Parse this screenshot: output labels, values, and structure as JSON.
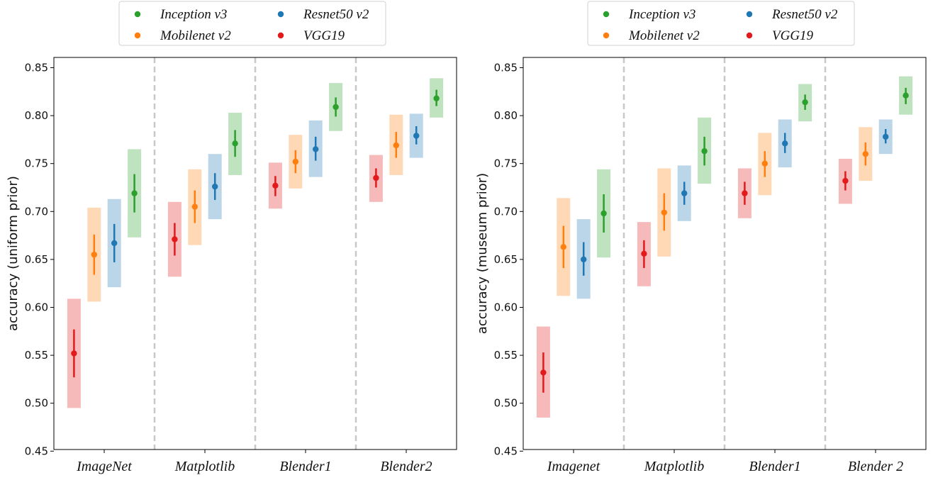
{
  "colors": {
    "Inception v3": "#2ca02c",
    "Mobilenet v2": "#ff7f0e",
    "Resnet50 v2": "#1f77b4",
    "VGG19": "#e31a1c"
  },
  "chart_data": [
    {
      "type": "scatter",
      "ylabel": "accuracy (uniform prior)",
      "ylim": [
        0.45,
        0.86
      ],
      "yticks": [
        "0.45",
        "0.50",
        "0.55",
        "0.60",
        "0.65",
        "0.70",
        "0.75",
        "0.80",
        "0.85"
      ],
      "categories": [
        "ImageNet",
        "Matplotlib",
        "Blender1",
        "Blender2"
      ],
      "legend": [
        "Inception v3",
        "Mobilenet v2",
        "Resnet50 v2",
        "VGG19"
      ],
      "legend_position": "top",
      "series": [
        {
          "name": "VGG19",
          "values": [
            0.552,
            0.671,
            0.727,
            0.735
          ],
          "err": [
            [
              0.527,
              0.577
            ],
            [
              0.654,
              0.688
            ],
            [
              0.716,
              0.737
            ],
            [
              0.725,
              0.745
            ]
          ],
          "band": [
            [
              0.495,
              0.609
            ],
            [
              0.632,
              0.71
            ],
            [
              0.703,
              0.751
            ],
            [
              0.71,
              0.759
            ]
          ]
        },
        {
          "name": "Mobilenet v2",
          "values": [
            0.655,
            0.705,
            0.752,
            0.769
          ],
          "err": [
            [
              0.634,
              0.676
            ],
            [
              0.688,
              0.722
            ],
            [
              0.74,
              0.764
            ],
            [
              0.756,
              0.783
            ]
          ],
          "band": [
            [
              0.606,
              0.704
            ],
            [
              0.665,
              0.744
            ],
            [
              0.724,
              0.78
            ],
            [
              0.738,
              0.801
            ]
          ]
        },
        {
          "name": "Resnet50 v2",
          "values": [
            0.667,
            0.726,
            0.765,
            0.779
          ],
          "err": [
            [
              0.647,
              0.687
            ],
            [
              0.712,
              0.74
            ],
            [
              0.753,
              0.778
            ],
            [
              0.77,
              0.789
            ]
          ],
          "band": [
            [
              0.621,
              0.713
            ],
            [
              0.692,
              0.76
            ],
            [
              0.736,
              0.795
            ],
            [
              0.756,
              0.802
            ]
          ]
        },
        {
          "name": "Inception v3",
          "values": [
            0.719,
            0.771,
            0.809,
            0.818
          ],
          "err": [
            [
              0.699,
              0.739
            ],
            [
              0.757,
              0.785
            ],
            [
              0.799,
              0.819
            ],
            [
              0.81,
              0.827
            ]
          ],
          "band": [
            [
              0.673,
              0.765
            ],
            [
              0.738,
              0.803
            ],
            [
              0.784,
              0.834
            ],
            [
              0.798,
              0.839
            ]
          ]
        }
      ]
    },
    {
      "type": "scatter",
      "ylabel": "accuracy (museum prior)",
      "ylim": [
        0.45,
        0.86
      ],
      "yticks": [
        "0.45",
        "0.50",
        "0.55",
        "0.60",
        "0.65",
        "0.70",
        "0.75",
        "0.80",
        "0.85"
      ],
      "categories": [
        "Imagenet",
        "Matplotlib",
        "Blender1",
        "Blender 2"
      ],
      "legend": [
        "Inception v3",
        "Mobilenet v2",
        "Resnet50 v2",
        "VGG19"
      ],
      "legend_position": "top",
      "series": [
        {
          "name": "VGG19",
          "values": [
            0.532,
            0.656,
            0.719,
            0.732
          ],
          "err": [
            [
              0.511,
              0.553
            ],
            [
              0.641,
              0.67
            ],
            [
              0.707,
              0.731
            ],
            [
              0.722,
              0.742
            ]
          ],
          "band": [
            [
              0.485,
              0.58
            ],
            [
              0.622,
              0.689
            ],
            [
              0.693,
              0.745
            ],
            [
              0.708,
              0.755
            ]
          ]
        },
        {
          "name": "Mobilenet v2",
          "values": [
            0.663,
            0.699,
            0.75,
            0.76
          ],
          "err": [
            [
              0.641,
              0.685
            ],
            [
              0.68,
              0.719
            ],
            [
              0.736,
              0.763
            ],
            [
              0.748,
              0.772
            ]
          ],
          "band": [
            [
              0.612,
              0.714
            ],
            [
              0.653,
              0.745
            ],
            [
              0.717,
              0.782
            ],
            [
              0.732,
              0.788
            ]
          ]
        },
        {
          "name": "Resnet50 v2",
          "values": [
            0.65,
            0.719,
            0.771,
            0.778
          ],
          "err": [
            [
              0.633,
              0.668
            ],
            [
              0.707,
              0.731
            ],
            [
              0.761,
              0.782
            ],
            [
              0.771,
              0.786
            ]
          ],
          "band": [
            [
              0.609,
              0.692
            ],
            [
              0.69,
              0.748
            ],
            [
              0.746,
              0.796
            ],
            [
              0.76,
              0.796
            ]
          ]
        },
        {
          "name": "Inception v3",
          "values": [
            0.698,
            0.763,
            0.814,
            0.821
          ],
          "err": [
            [
              0.678,
              0.718
            ],
            [
              0.748,
              0.778
            ],
            [
              0.806,
              0.822
            ],
            [
              0.812,
              0.829
            ]
          ],
          "band": [
            [
              0.652,
              0.744
            ],
            [
              0.729,
              0.798
            ],
            [
              0.794,
              0.833
            ],
            [
              0.801,
              0.841
            ]
          ]
        }
      ]
    }
  ]
}
